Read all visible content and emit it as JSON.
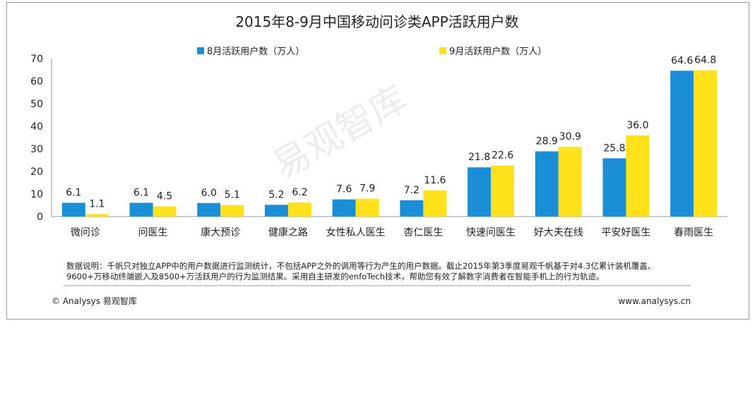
{
  "chart_data": {
    "type": "bar",
    "title": "2015年8-9月中国移动问诊类APP活跃用户数",
    "categories": [
      "微问诊",
      "问医生",
      "康大预诊",
      "健康之路",
      "女性私人医生",
      "杏仁医生",
      "快速问医生",
      "好大夫在线",
      "平安好医生",
      "春雨医生"
    ],
    "series": [
      {
        "name": "8月活跃用户数（万人）",
        "color": "#1a8fd8",
        "values": [
          6.1,
          6.1,
          6.0,
          5.2,
          7.6,
          7.2,
          21.8,
          28.9,
          25.8,
          64.6
        ]
      },
      {
        "name": "9月活跃用户数（万人）",
        "color": "#ffe21a",
        "values": [
          1.1,
          4.5,
          5.1,
          6.2,
          7.9,
          11.6,
          22.6,
          30.9,
          36.0,
          64.8
        ]
      }
    ],
    "labels_8": [
      "6.1",
      "6.1",
      "6.0",
      "5.2",
      "7.6",
      "7.2",
      "21.8",
      "28.9",
      "25.8",
      "64.6"
    ],
    "labels_9": [
      "1.1",
      "4.5",
      "5.1",
      "6.2",
      "7.9",
      "11.6",
      "22.6",
      "30.9",
      "36.0",
      "64.8"
    ],
    "yticks": [
      "0",
      "10",
      "20",
      "30",
      "40",
      "50",
      "60",
      "70"
    ],
    "ylim": [
      0,
      70
    ],
    "xlabel": "",
    "ylabel": "",
    "grid": false,
    "legend_position": "top"
  },
  "note": {
    "line1": "数据说明：千帆只对独立APP中的用户数据进行监测统计，不包括APP之外的调用等行为产生的用户数据。截止2015年第3季度易观千帆基于对4.3亿累计装机覆盖、",
    "line2": "9600+万移动终端嵌入及8500+万活跃用户的行为监测结果。采用自主研发的enfoTech技术，帮助您有效了解数字消费者在智能手机上的行为轨迹。"
  },
  "footer": {
    "copyright": "© Analysys 易观智库",
    "url": "www.analysys.cn"
  },
  "watermark": "易观智库"
}
